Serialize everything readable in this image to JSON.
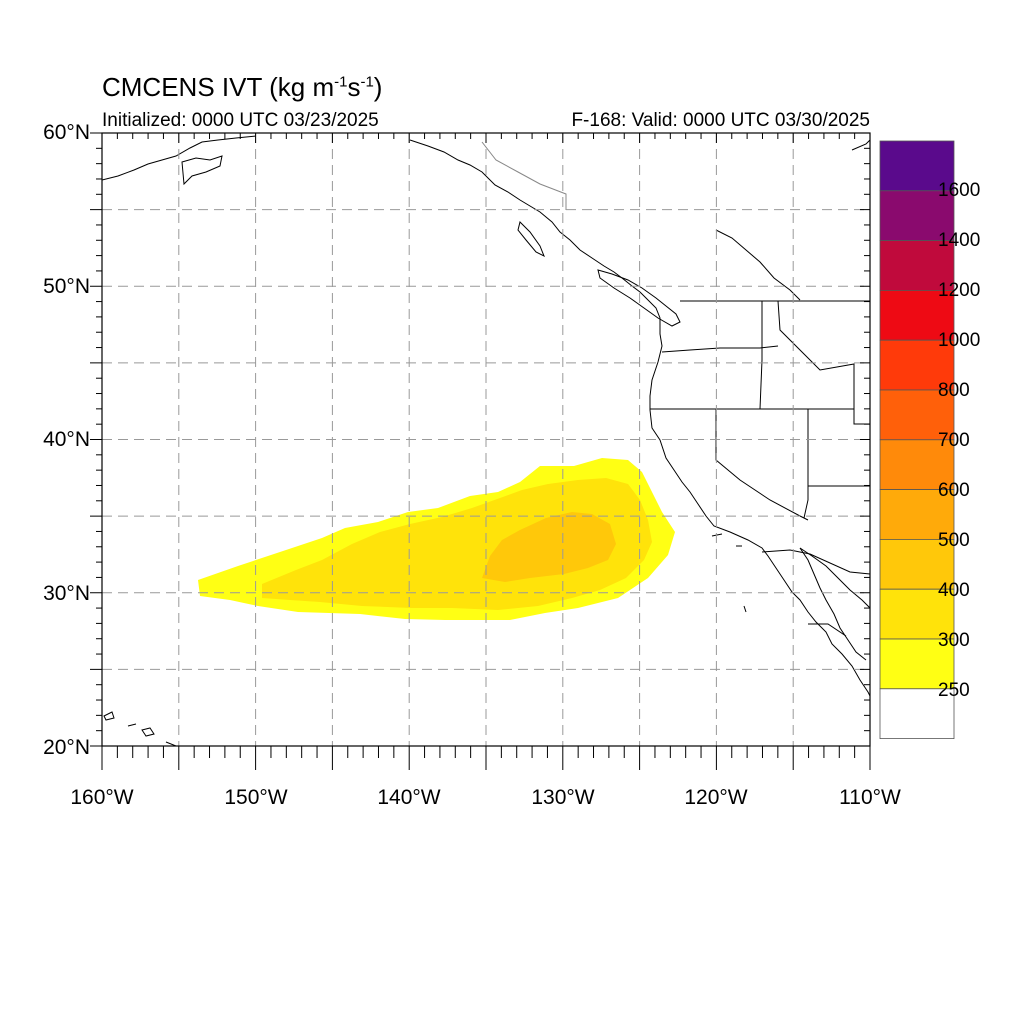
{
  "title": {
    "text": "CMCENS IVT (kg m",
    "exp1": "-1",
    "mid": "s",
    "exp2": "-1",
    "end": ")"
  },
  "subtitle_left": "Initialized: 0000 UTC 03/23/2025",
  "subtitle_right": "F-168: Valid: 0000 UTC 03/30/2025",
  "lat_labels": [
    "60°N",
    "50°N",
    "40°N",
    "30°N",
    "20°N"
  ],
  "lon_labels": [
    "160°W",
    "150°W",
    "140°W",
    "130°W",
    "120°W",
    "110°W"
  ],
  "map": {
    "lon_range": [
      -160,
      -110
    ],
    "lat_range": [
      20,
      60
    ],
    "grid_lon": [
      -155,
      -150,
      -145,
      -140,
      -135,
      -130,
      -125,
      -120,
      -115
    ],
    "grid_lat": [
      25,
      30,
      35,
      40,
      45,
      50,
      55
    ]
  },
  "colorbar": {
    "labels": [
      "1600",
      "1400",
      "1200",
      "1000",
      "800",
      "700",
      "600",
      "500",
      "400",
      "300",
      "250"
    ],
    "colors": [
      "#5a0a8c",
      "#8a0a6e",
      "#c00a3c",
      "#ee0a14",
      "#ff3a0a",
      "#ff600a",
      "#ff8a0a",
      "#ffaa0a",
      "#ffc80a",
      "#ffe30a",
      "#ffff14",
      "#ffffff"
    ]
  },
  "field": {
    "levels": [
      {
        "min": 250,
        "color": "#ffff14"
      },
      {
        "min": 300,
        "color": "#ffe30a"
      },
      {
        "min": 400,
        "color": "#ffc80a"
      }
    ]
  }
}
